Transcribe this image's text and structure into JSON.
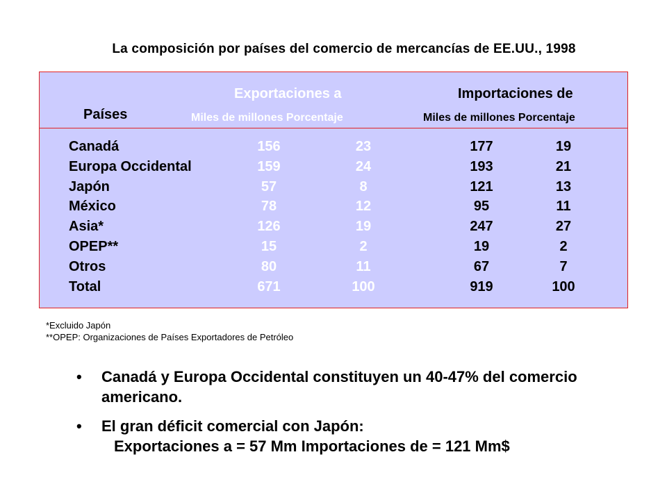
{
  "title": "La composición por países del comercio de mercancías de EE.UU., 1998",
  "table": {
    "header": {
      "exports_title": "Exportaciones a",
      "imports_title": "Importaciones de",
      "countries_label": "Países",
      "exports_sub": "Miles de millones Porcentaje",
      "imports_sub": "Miles de millones Porcentaje"
    },
    "rows": [
      {
        "country": "Canadá",
        "exp_value": "156",
        "exp_pct": "23",
        "imp_value": "177",
        "imp_pct": "19"
      },
      {
        "country": "Europa Occidental",
        "exp_value": "159",
        "exp_pct": "24",
        "imp_value": "193",
        "imp_pct": "21"
      },
      {
        "country": "Japón",
        "exp_value": "57",
        "exp_pct": "8",
        "imp_value": "121",
        "imp_pct": "13"
      },
      {
        "country": "México",
        "exp_value": "78",
        "exp_pct": "12",
        "imp_value": "95",
        "imp_pct": "11"
      },
      {
        "country": "Asia*",
        "exp_value": "126",
        "exp_pct": "19",
        "imp_value": "247",
        "imp_pct": "27"
      },
      {
        "country": "OPEP**",
        "exp_value": "15",
        "exp_pct": "2",
        "imp_value": "19",
        "imp_pct": "2"
      },
      {
        "country": "Otros",
        "exp_value": "80",
        "exp_pct": "11",
        "imp_value": "67",
        "imp_pct": "7"
      },
      {
        "country": "Total",
        "exp_value": "671",
        "exp_pct": "100",
        "imp_value": "919",
        "imp_pct": "100"
      }
    ]
  },
  "footnotes": {
    "note1": "*Excluido Japón",
    "note2": "**OPEP:  Organizaciones de Países Exportadores de Petróleo"
  },
  "bullets": {
    "b1": "Canadá y Europa Occidental constituyen un 40-47% del comercio americano.",
    "b2_line1": "El gran déficit comercial con Japón:",
    "b2_line2": "Exportaciones a = 57 Mm   Importaciones de = 121 Mm$"
  },
  "colors": {
    "table_bg": "#ccccff",
    "border": "#e02020",
    "export_text": "#ffffff"
  }
}
